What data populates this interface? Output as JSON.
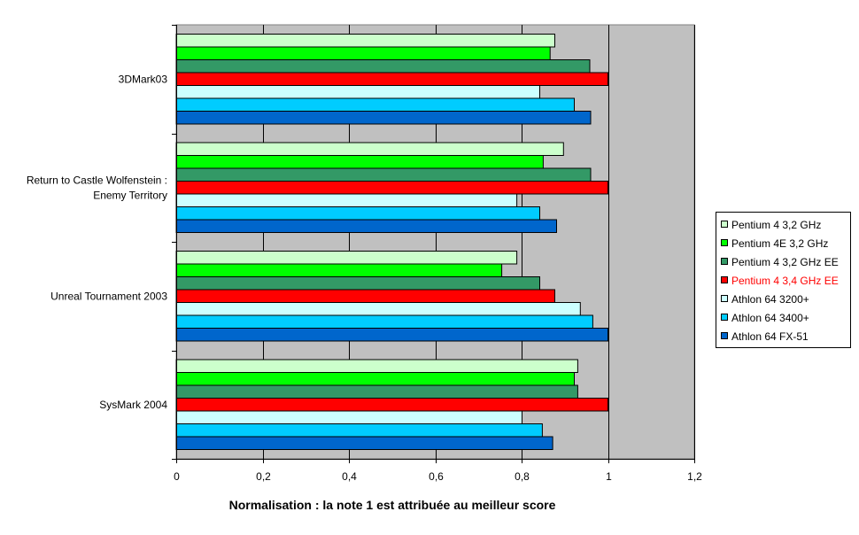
{
  "chart_data": {
    "type": "bar",
    "orientation": "horizontal",
    "title": "",
    "xlabel": "Normalisation : la note 1 est attribuée au meilleur score",
    "ylabel": "",
    "xlim": [
      0,
      1.2
    ],
    "xticks": [
      "0",
      "0,2",
      "0,4",
      "0,6",
      "0,8",
      "1",
      "1,2"
    ],
    "grid": true,
    "background": "#c0c0c0",
    "legend_position": "right",
    "categories": [
      "3DMark03",
      "Return to Castle Wolfenstein : Enemy Territory",
      "Unreal Tournament 2003",
      "SysMark 2004"
    ],
    "category_lines": [
      [
        "3DMark03"
      ],
      [
        "Return to Castle Wolfenstein :",
        "Enemy Territory"
      ],
      [
        "Unreal Tournament 2003"
      ],
      [
        "SysMark 2004"
      ]
    ],
    "series": [
      {
        "name": "Pentium 4 3,2 GHz",
        "color": "#ccffcc",
        "values": [
          0.877,
          0.897,
          0.789,
          0.93
        ]
      },
      {
        "name": "Pentium 4E 3,2 GHz",
        "color": "#00ff00",
        "values": [
          0.866,
          0.85,
          0.754,
          0.922
        ]
      },
      {
        "name": "Pentium 4 3,2 GHz EE",
        "color": "#339966",
        "values": [
          0.958,
          0.96,
          0.842,
          0.93
        ]
      },
      {
        "name": "Pentium 4 3,4 GHz EE",
        "color": "#ff0000",
        "values": [
          1.0,
          1.0,
          0.877,
          1.0
        ],
        "legend_text_color": "#ff0000"
      },
      {
        "name": "Athlon 64 3200+",
        "color": "#ccffff",
        "values": [
          0.842,
          0.789,
          0.936,
          0.801
        ]
      },
      {
        "name": "Athlon 64 3400+",
        "color": "#00ccff",
        "values": [
          0.922,
          0.842,
          0.965,
          0.848
        ]
      },
      {
        "name": "Athlon 64 FX-51",
        "color": "#0066cc",
        "values": [
          0.96,
          0.881,
          1.0,
          0.872
        ]
      }
    ]
  }
}
